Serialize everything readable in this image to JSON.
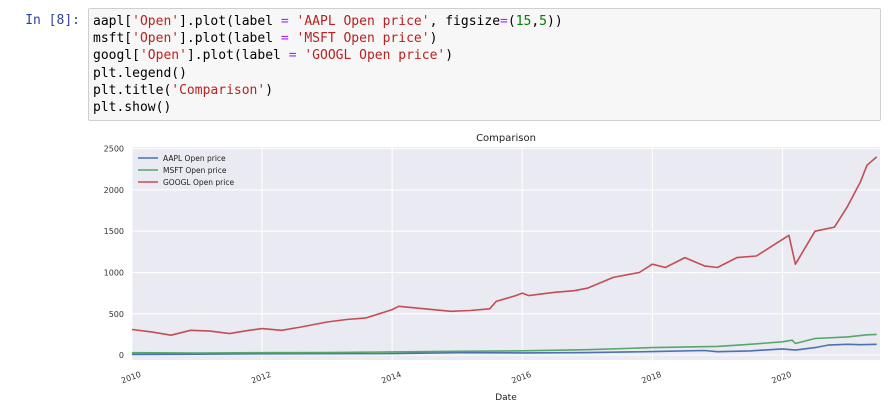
{
  "cell": {
    "prompt": "In [8]:",
    "code_lines": [
      [
        {
          "t": "aapl["
        },
        {
          "t": "'Open'",
          "c": "str"
        },
        {
          "t": "].plot(label "
        },
        {
          "t": "=",
          "c": "op"
        },
        {
          "t": " "
        },
        {
          "t": "'AAPL Open price'",
          "c": "str"
        },
        {
          "t": ", figsize"
        },
        {
          "t": "=",
          "c": "op"
        },
        {
          "t": "("
        },
        {
          "t": "15",
          "c": "num"
        },
        {
          "t": ","
        },
        {
          "t": "5",
          "c": "num"
        },
        {
          "t": "))"
        }
      ],
      [
        {
          "t": "msft["
        },
        {
          "t": "'Open'",
          "c": "str"
        },
        {
          "t": "].plot(label "
        },
        {
          "t": "=",
          "c": "op"
        },
        {
          "t": " "
        },
        {
          "t": "'MSFT Open price'",
          "c": "str"
        },
        {
          "t": ")"
        }
      ],
      [
        {
          "t": "googl["
        },
        {
          "t": "'Open'",
          "c": "str"
        },
        {
          "t": "].plot(label "
        },
        {
          "t": "=",
          "c": "op"
        },
        {
          "t": " "
        },
        {
          "t": "'GOOGL Open price'",
          "c": "str"
        },
        {
          "t": ")"
        }
      ],
      [
        {
          "t": "plt.legend()"
        }
      ],
      [
        {
          "t": "plt.title("
        },
        {
          "t": "'Comparison'",
          "c": "str"
        },
        {
          "t": ")"
        }
      ],
      [
        {
          "t": "plt.show()"
        }
      ]
    ]
  },
  "chart_data": {
    "type": "line",
    "title": "Comparison",
    "xlabel": "Date",
    "ylabel": "",
    "xlim": [
      2010.0,
      2021.5
    ],
    "ylim": [
      -60,
      2520
    ],
    "x_ticks": [
      "2010",
      "2012",
      "2014",
      "2016",
      "2018",
      "2020"
    ],
    "y_ticks": [
      0,
      500,
      1000,
      1500,
      2000,
      2500
    ],
    "grid": true,
    "legend_position": "top-left",
    "series": [
      {
        "name": "AAPL Open price",
        "color": "#4c72b0",
        "x": [
          2010.0,
          2011.0,
          2012.0,
          2013.0,
          2014.0,
          2015.0,
          2016.0,
          2017.0,
          2018.0,
          2018.8,
          2019.0,
          2019.5,
          2020.0,
          2020.2,
          2020.5,
          2020.7,
          2021.0,
          2021.2,
          2021.45
        ],
        "y": [
          8,
          10,
          15,
          16,
          18,
          28,
          26,
          30,
          42,
          55,
          40,
          50,
          75,
          60,
          90,
          120,
          130,
          125,
          130
        ]
      },
      {
        "name": "MSFT Open price",
        "color": "#55a868",
        "x": [
          2010.0,
          2011.0,
          2012.0,
          2013.0,
          2014.0,
          2015.0,
          2016.0,
          2017.0,
          2018.0,
          2019.0,
          2019.5,
          2020.0,
          2020.15,
          2020.2,
          2020.5,
          2021.0,
          2021.3,
          2021.45
        ],
        "y": [
          28,
          25,
          28,
          30,
          38,
          45,
          52,
          65,
          90,
          105,
          130,
          160,
          180,
          140,
          200,
          220,
          245,
          250
        ]
      },
      {
        "name": "GOOGL Open price",
        "color": "#c44e52",
        "x": [
          2010.0,
          2010.3,
          2010.6,
          2010.9,
          2011.2,
          2011.5,
          2011.8,
          2012.0,
          2012.3,
          2012.6,
          2013.0,
          2013.3,
          2013.6,
          2014.0,
          2014.1,
          2014.5,
          2014.9,
          2015.2,
          2015.5,
          2015.6,
          2015.9,
          2016.0,
          2016.1,
          2016.5,
          2016.8,
          2017.0,
          2017.4,
          2017.8,
          2018.0,
          2018.2,
          2018.5,
          2018.8,
          2019.0,
          2019.3,
          2019.6,
          2019.9,
          2020.1,
          2020.2,
          2020.5,
          2020.8,
          2021.0,
          2021.2,
          2021.3,
          2021.45
        ],
        "y": [
          310,
          280,
          240,
          300,
          290,
          260,
          300,
          320,
          300,
          340,
          400,
          430,
          450,
          550,
          590,
          560,
          530,
          540,
          560,
          650,
          720,
          750,
          720,
          760,
          780,
          810,
          940,
          1000,
          1100,
          1060,
          1180,
          1080,
          1060,
          1180,
          1200,
          1350,
          1450,
          1100,
          1500,
          1550,
          1800,
          2100,
          2300,
          2400
        ]
      }
    ]
  }
}
